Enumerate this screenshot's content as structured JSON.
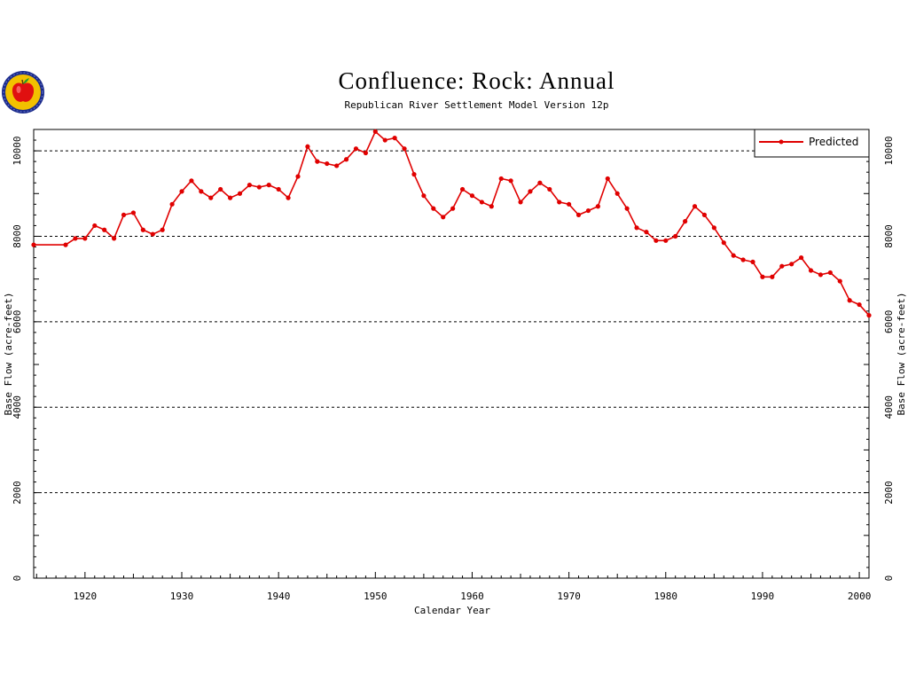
{
  "chart_data": {
    "type": "line",
    "title": "Confluence:  Rock:  Annual",
    "subtitle": "Republican River Settlement Model Version 12p",
    "xlabel": "Calendar Year",
    "ylabel": "Base Flow (acre-feet)",
    "xlim": [
      1914.7,
      2001
    ],
    "ylim": [
      0,
      10500
    ],
    "x_ticks": [
      "1920",
      "1930",
      "1940",
      "1950",
      "1960",
      "1970",
      "1980",
      "1990",
      "2000"
    ],
    "y_ticks": [
      "0",
      "2000",
      "4000",
      "6000",
      "8000",
      "10000"
    ],
    "grid": "horizontal dashed at 2000, 4000, 6000, 8000, 10000",
    "legend_position": "top-right",
    "series": [
      {
        "name": "Predicted",
        "color": "#e00000",
        "x": [
          1914.7,
          1918,
          1919,
          1920,
          1921,
          1922,
          1923,
          1924,
          1925,
          1926,
          1927,
          1928,
          1929,
          1930,
          1931,
          1932,
          1933,
          1934,
          1935,
          1936,
          1937,
          1938,
          1939,
          1940,
          1941,
          1942,
          1943,
          1944,
          1945,
          1946,
          1947,
          1948,
          1949,
          1950,
          1951,
          1952,
          1953,
          1954,
          1955,
          1956,
          1957,
          1958,
          1959,
          1960,
          1961,
          1962,
          1963,
          1964,
          1965,
          1966,
          1967,
          1968,
          1969,
          1970,
          1971,
          1972,
          1973,
          1974,
          1975,
          1976,
          1977,
          1978,
          1979,
          1980,
          1981,
          1982,
          1983,
          1984,
          1985,
          1986,
          1987,
          1988,
          1989,
          1990,
          1991,
          1992,
          1993,
          1994,
          1995,
          1996,
          1997,
          1998,
          1999,
          2000,
          2001
        ],
        "y": [
          7800,
          7800,
          7950,
          7950,
          8250,
          8150,
          7950,
          8500,
          8550,
          8150,
          8050,
          8150,
          8750,
          9050,
          9300,
          9050,
          8900,
          9100,
          8900,
          9000,
          9200,
          9150,
          9200,
          9100,
          8900,
          9400,
          10100,
          9750,
          9700,
          9650,
          9800,
          10050,
          9950,
          10450,
          10250,
          10300,
          10050,
          9450,
          8950,
          8650,
          8450,
          8650,
          9100,
          8950,
          8800,
          8700,
          9350,
          9300,
          8800,
          9050,
          9250,
          9100,
          8800,
          8750,
          8500,
          8600,
          8700,
          9350,
          9000,
          8650,
          8200,
          8100,
          7900,
          7900,
          8000,
          8350,
          8700,
          8500,
          8200,
          7850,
          7550,
          7450,
          7400,
          7050,
          7050,
          7300,
          7350,
          7500,
          7200,
          7100,
          7150,
          6950,
          6500,
          6400,
          6150
        ]
      }
    ]
  },
  "logo": {
    "description_colors": {
      "ring": "#1a2a8a",
      "field": "#f2c100",
      "apple": "#e01010",
      "leaf": "#2a9a2a"
    }
  }
}
